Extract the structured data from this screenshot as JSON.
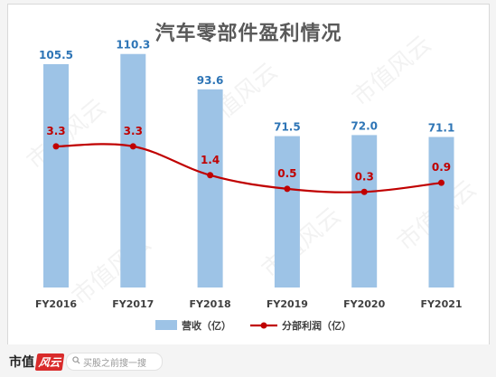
{
  "chart_data": {
    "type": "bar+line",
    "title": "汽车零部件盈利情况",
    "categories": [
      "FY2016",
      "FY2017",
      "FY2018",
      "FY2019",
      "FY2020",
      "FY2021"
    ],
    "series": [
      {
        "name": "营收（亿）",
        "kind": "bar",
        "values": [
          105.5,
          110.3,
          93.6,
          71.5,
          72.0,
          71.1
        ],
        "labels": [
          "105.5",
          "110.3",
          "93.6",
          "71.5",
          "72.0",
          "71.1"
        ],
        "color": "#9dc3e6",
        "label_color": "#2e75b6"
      },
      {
        "name": "分部利润（亿）",
        "kind": "line",
        "values": [
          3.3,
          3.3,
          1.4,
          0.5,
          0.3,
          0.9
        ],
        "labels": [
          "3.3",
          "3.3",
          "1.4",
          "0.5",
          "0.3",
          "0.9"
        ],
        "color": "#c00000",
        "label_color": "#c00000"
      }
    ],
    "bar_axis_range": [
      0,
      120
    ],
    "line_axis_range": [
      -6,
      8
    ],
    "axes_shown": false,
    "grid": false,
    "legend_position": "bottom",
    "watermark": "市值风云"
  },
  "footer": {
    "brand_text": "市值",
    "brand_tag": "风云",
    "search_placeholder": "买股之前搜一搜",
    "search_icon": "search-icon"
  }
}
